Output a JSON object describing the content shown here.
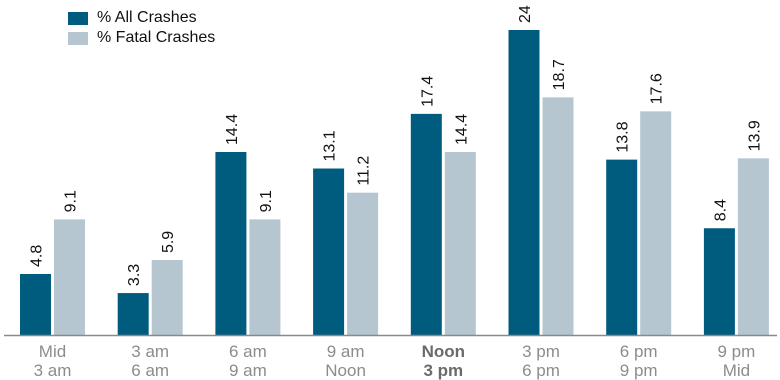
{
  "colors": {
    "all": "#005c7f",
    "fatal": "#b6c6d1",
    "axis": "#8a8a8a",
    "label": "#111111",
    "tick": "#8c8c8c",
    "tick_bold": "#6b6b6b"
  },
  "legend": {
    "all_label": "% All Crashes",
    "fatal_label": "% Fatal Crashes"
  },
  "chart_data": {
    "type": "bar",
    "categories": [
      [
        "Mid",
        "3 am"
      ],
      [
        "3 am",
        "6 am"
      ],
      [
        "6 am",
        "9 am"
      ],
      [
        "9 am",
        "Noon"
      ],
      [
        "Noon",
        "3 pm"
      ],
      [
        "3 pm",
        "6 pm"
      ],
      [
        "6 pm",
        "9 pm"
      ],
      [
        "9 pm",
        "Mid"
      ]
    ],
    "bold_category_index": 4,
    "series": [
      {
        "name": "% All Crashes",
        "values": [
          4.8,
          3.3,
          14.4,
          13.1,
          17.4,
          24,
          13.8,
          8.4
        ]
      },
      {
        "name": "% Fatal Crashes",
        "values": [
          9.1,
          5.9,
          9.1,
          11.2,
          14.4,
          18.7,
          17.6,
          13.9
        ]
      }
    ],
    "value_labels": [
      [
        "4.8",
        "3.3",
        "14.4",
        "13.1",
        "17.4",
        "24",
        "13.8",
        "8.4"
      ],
      [
        "9.1",
        "5.9",
        "9.1",
        "11.2",
        "14.4",
        "18.7",
        "17.6",
        "13.9"
      ]
    ],
    "ylim": [
      0,
      24
    ],
    "legend_position": "top-left",
    "grid": false
  }
}
